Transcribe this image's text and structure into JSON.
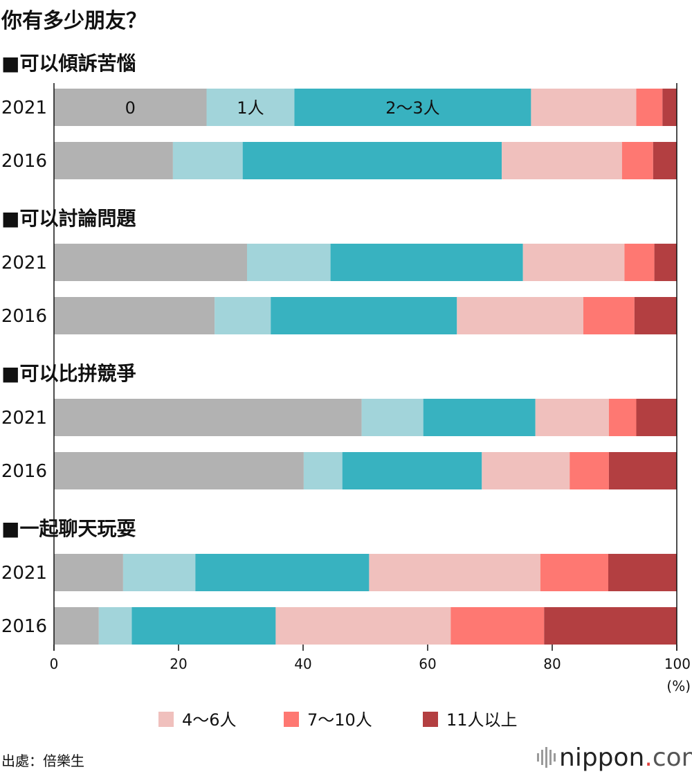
{
  "title": "你有多少朋友？",
  "source": "出處：倍樂生",
  "logo": {
    "brand": "nippon",
    "dot": ".",
    "tld": "com"
  },
  "chart_data": {
    "type": "bar",
    "orientation": "horizontal-stacked-100",
    "title": "你有多少朋友？",
    "xlabel": "(%)",
    "xlim": [
      0,
      100
    ],
    "x_ticks": [
      "0",
      "20",
      "40",
      "60",
      "80",
      "100"
    ],
    "categories": [
      "0",
      "1人",
      "2～3人",
      "4～6人",
      "7～10人",
      "11人以上"
    ],
    "colors": [
      "#b2b2b2",
      "#a2d4da",
      "#38b2c0",
      "#f0c0bd",
      "#fe7872",
      "#b33f41"
    ],
    "legend": [
      "4～6人",
      "7～10人",
      "11人以上"
    ],
    "legend_position": "bottom",
    "inline_segment_labels": [
      "0",
      "1人",
      "2～3人"
    ],
    "groups": [
      {
        "name": "■可以傾訴苦惱",
        "rows": [
          {
            "year": "2021",
            "values": [
              24.5,
              14.1,
              38.0,
              16.9,
              4.2,
              2.3
            ]
          },
          {
            "year": "2016",
            "values": [
              19.1,
              11.2,
              41.6,
              19.3,
              5.0,
              3.8
            ]
          }
        ]
      },
      {
        "name": "■可以討論問題",
        "rows": [
          {
            "year": "2021",
            "values": [
              31.0,
              13.4,
              30.9,
              16.3,
              4.8,
              3.6
            ]
          },
          {
            "year": "2016",
            "values": [
              25.8,
              9.0,
              29.9,
              20.3,
              8.2,
              6.8
            ]
          }
        ]
      },
      {
        "name": "■可以比拼競爭",
        "rows": [
          {
            "year": "2021",
            "values": [
              49.4,
              9.9,
              18.0,
              11.8,
              4.4,
              6.5
            ]
          },
          {
            "year": "2016",
            "values": [
              40.1,
              6.2,
              22.4,
              14.1,
              6.3,
              10.9
            ]
          }
        ]
      },
      {
        "name": "■一起聊天玩耍",
        "rows": [
          {
            "year": "2021",
            "values": [
              11.1,
              11.6,
              27.9,
              27.5,
              10.9,
              11.0
            ]
          },
          {
            "year": "2016",
            "values": [
              7.2,
              5.3,
              23.1,
              28.1,
              15.0,
              21.3
            ]
          }
        ]
      }
    ]
  }
}
